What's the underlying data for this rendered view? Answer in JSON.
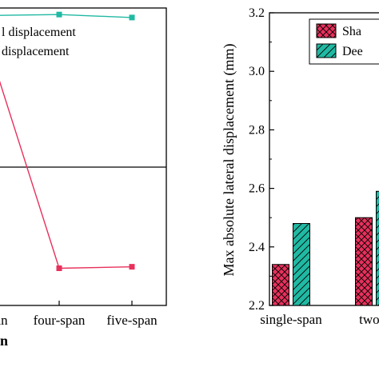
{
  "chart_data": [
    {
      "type": "line",
      "panel": "left",
      "title": "",
      "xlabel": "n",
      "ylabel": "",
      "categories": [
        "span",
        "four-span",
        "five-span"
      ],
      "ylim": [
        0,
        1
      ],
      "series": [
        {
          "name": "l displacement",
          "color": "#e8305c",
          "marker": "square",
          "values": [
            0.8,
            0.125,
            0.13
          ]
        },
        {
          "name": "displacement",
          "color": "#20b9a3",
          "marker": "square",
          "values": [
            0.975,
            0.978,
            0.968
          ]
        }
      ],
      "reference_line": 0.465,
      "legend_position": "top"
    },
    {
      "type": "bar",
      "panel": "right",
      "title": "",
      "ylabel": "Max absolute lateral displacement (mm)",
      "xlabel": "",
      "categories": [
        "single-span",
        "two-s"
      ],
      "ylim": [
        2.2,
        3.2
      ],
      "yticks": [
        "2.2",
        "2.4",
        "2.6",
        "2.8",
        "3.0",
        "3.2"
      ],
      "series": [
        {
          "name": "Sha",
          "color": "#e8305c",
          "pattern": "crosshatch",
          "values": [
            2.34,
            2.5
          ]
        },
        {
          "name": "Dee",
          "color": "#20b9a3",
          "pattern": "diagonal",
          "values": [
            2.48,
            2.59
          ]
        }
      ],
      "legend_position": "top-right"
    }
  ]
}
